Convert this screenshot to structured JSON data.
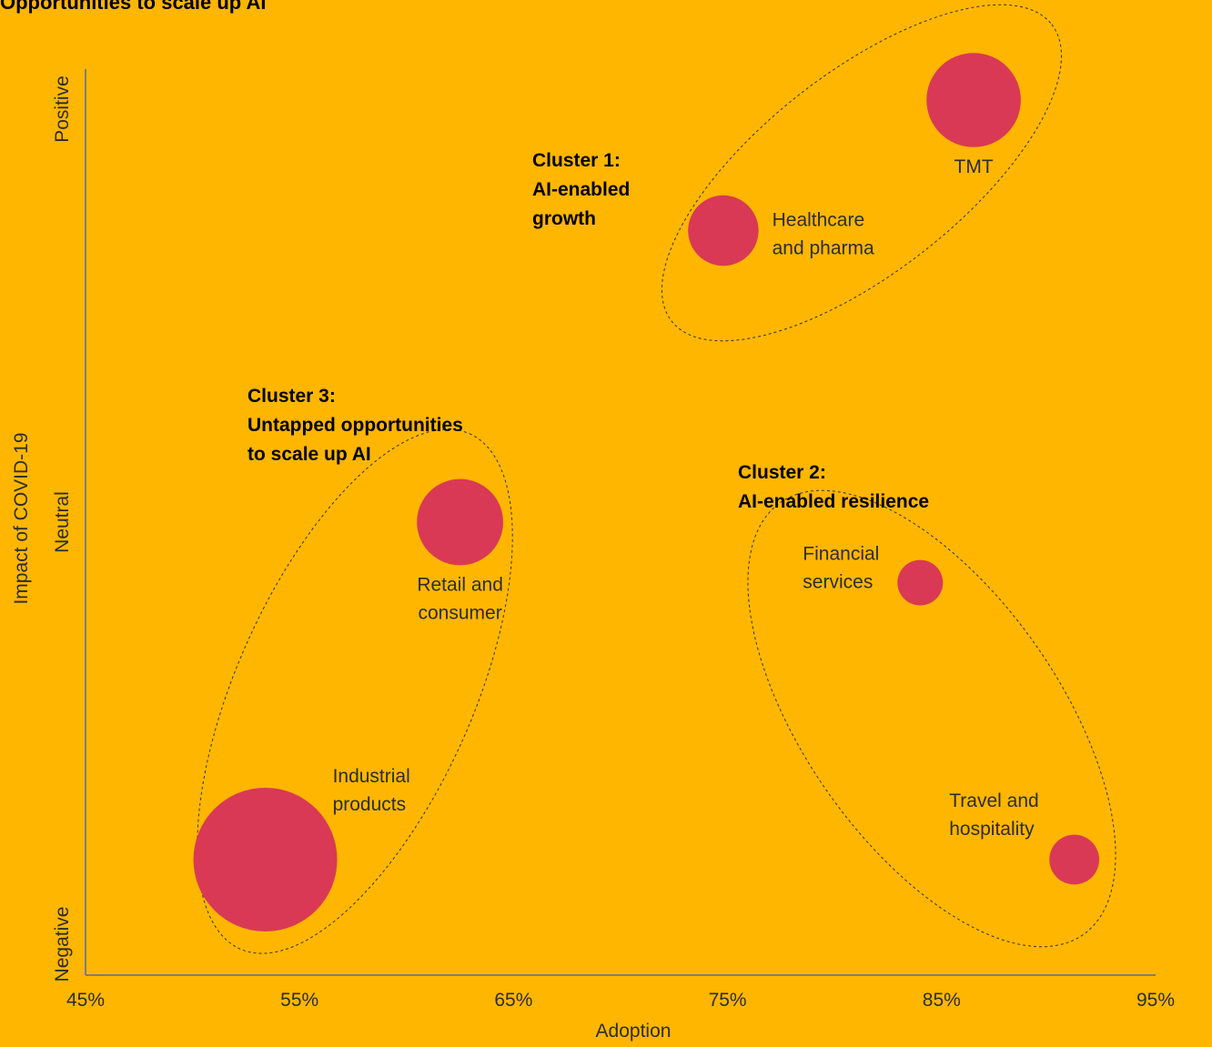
{
  "chart_data": {
    "type": "scatter",
    "title": "Opportunities to scale up AI",
    "xlabel": "Adoption",
    "ylabel": "Impact of COVID-19",
    "xlim": [
      45,
      95
    ],
    "x_ticks": [
      "45%",
      "55%",
      "65%",
      "75%",
      "85%",
      "95%"
    ],
    "y_ticks": [
      "Negative",
      "Neutral",
      "Positive"
    ],
    "points": [
      {
        "label": [
          "TMT"
        ],
        "x": 86.5,
        "y": 0.97,
        "size": 0.43,
        "label_pos": "below"
      },
      {
        "label": [
          "Healthcare",
          "and pharma"
        ],
        "x": 74.8,
        "y": 0.67,
        "size": 0.24,
        "label_pos": "right"
      },
      {
        "label": [
          "Retail and",
          "consumer"
        ],
        "x": 62.5,
        "y": 0.0,
        "size": 0.36,
        "label_pos": "below"
      },
      {
        "label": [
          "Financial",
          "services"
        ],
        "x": 84.0,
        "y": -0.14,
        "size": 0.1,
        "label_pos": "left"
      },
      {
        "label": [
          "Travel and",
          "hospitality"
        ],
        "x": 91.2,
        "y": -0.78,
        "size": 0.12,
        "label_pos": "above-left"
      },
      {
        "label": [
          "Industrial",
          "products"
        ],
        "x": 53.4,
        "y": -0.78,
        "size": 1.0,
        "label_pos": "above-right"
      }
    ],
    "clusters": [
      {
        "lines": [
          "Cluster 1:",
          "AI-enabled",
          "growth"
        ]
      },
      {
        "lines": [
          "Cluster 2:",
          "AI-enabled resilience"
        ]
      },
      {
        "lines": [
          "Cluster 3:",
          "Untapped opportunities",
          "to scale up AI"
        ]
      }
    ],
    "colors": {
      "background": "#FFB600",
      "bubble": "#D93954",
      "axis": "#7d7d7d",
      "text": "#2d2d2d"
    }
  }
}
